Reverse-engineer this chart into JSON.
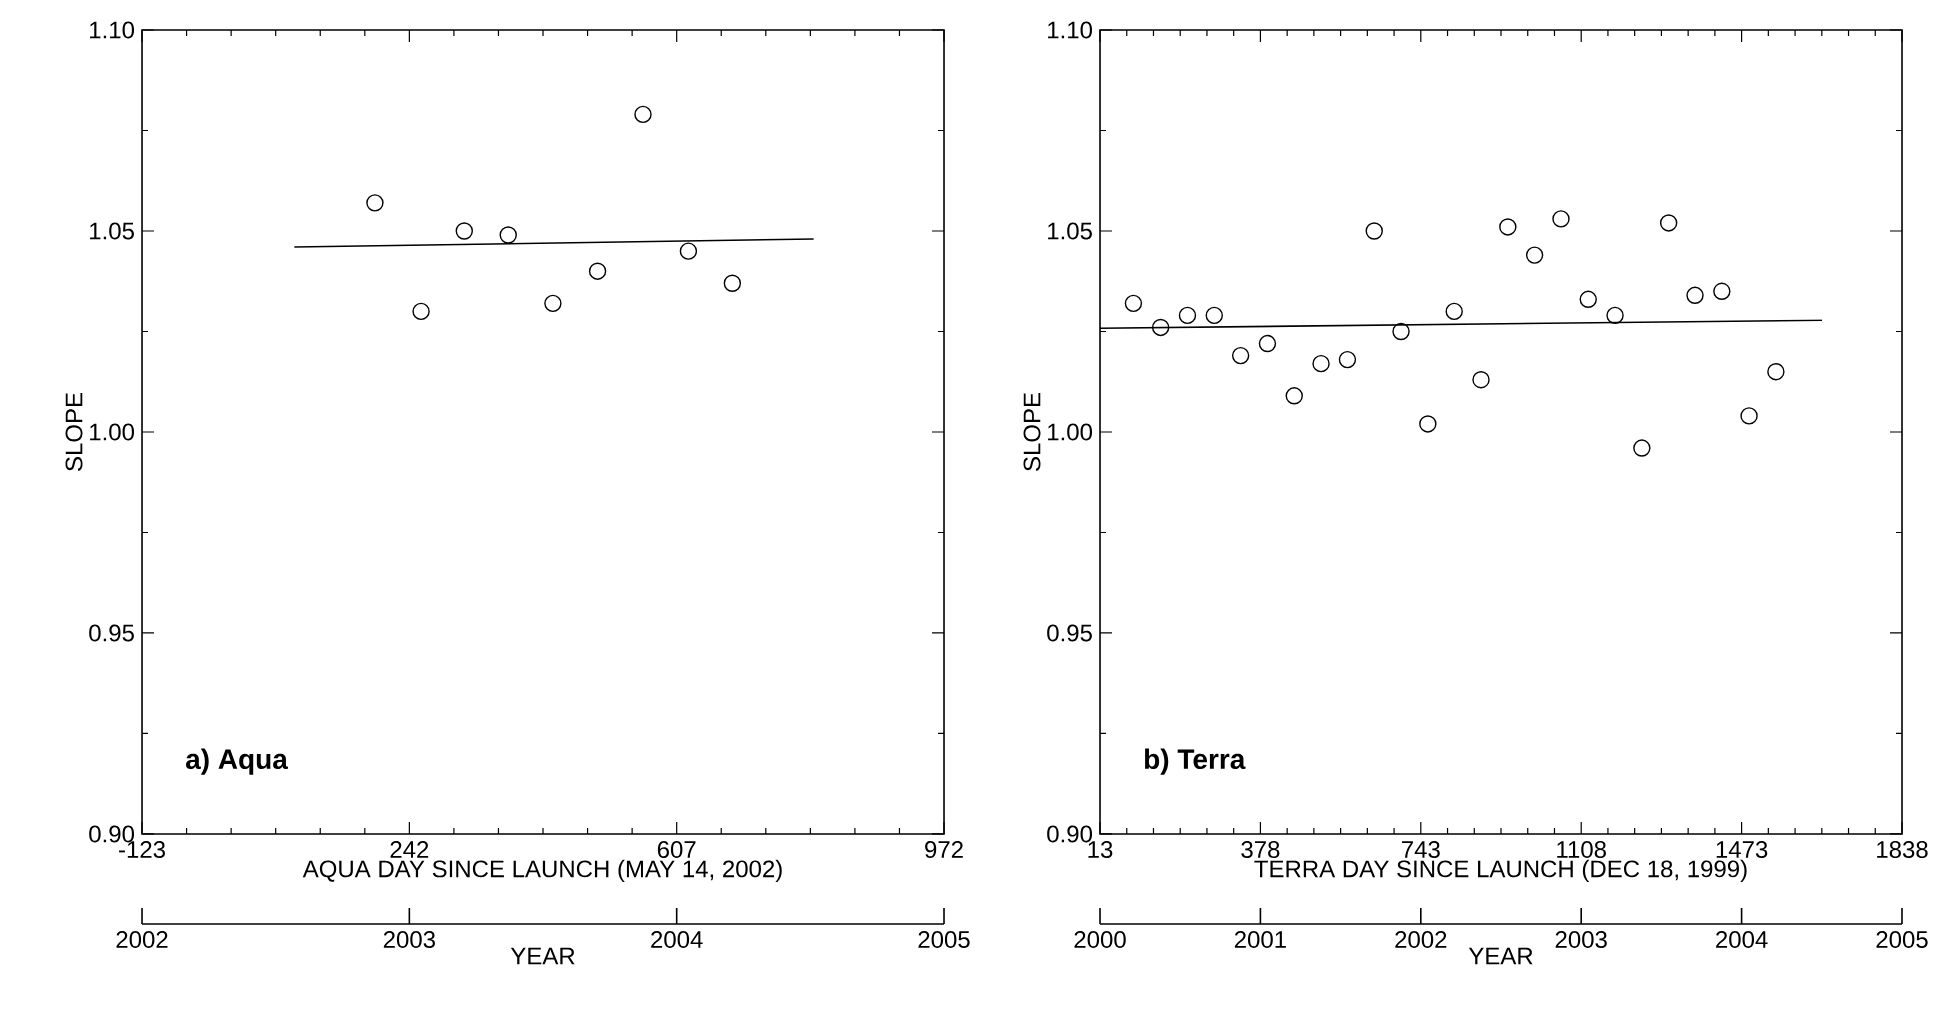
{
  "chart_data": [
    {
      "type": "scatter",
      "ylabel": "SLOPE",
      "xlabel": "AQUA DAY SINCE LAUNCH (MAY 14, 2002)",
      "x2label": "YEAR",
      "annotations": [
        "a) Aqua"
      ],
      "xlim": [
        -123,
        972
      ],
      "xticks": [
        -123,
        242,
        607,
        972
      ],
      "ylim": [
        0.9,
        1.1
      ],
      "x2lim": [
        2002,
        2005
      ],
      "x2ticks": [
        2002,
        2003,
        2004,
        2005
      ],
      "yticks": [
        {
          "value": 0.9,
          "label": "0.90"
        },
        {
          "value": 0.95,
          "label": "0.95"
        },
        {
          "value": 1.0,
          "label": "1.00"
        },
        {
          "value": 1.05,
          "label": "1.05"
        },
        {
          "value": 1.1,
          "label": "1.10"
        }
      ],
      "series": [
        {
          "marker": "circle",
          "x": [
            195,
            258,
            317,
            377,
            438,
            499,
            561,
            623,
            683
          ],
          "values": [
            1.057,
            1.03,
            1.05,
            1.049,
            1.032,
            1.04,
            1.079,
            1.045,
            1.037
          ],
          "color": "#000000"
        },
        {
          "type": "line",
          "x": [
            85,
            794
          ],
          "values": [
            1.046,
            1.048
          ],
          "color": "#000000"
        }
      ]
    },
    {
      "type": "scatter",
      "ylabel": "SLOPE",
      "xlabel": "TERRA DAY SINCE LAUNCH (DEC 18, 1999)",
      "x2label": "YEAR",
      "annotations": [
        "b) Terra"
      ],
      "xlim": [
        13,
        1838
      ],
      "xticks": [
        13,
        378,
        743,
        1108,
        1473,
        1838
      ],
      "ylim": [
        0.9,
        1.1
      ],
      "x2lim": [
        2000,
        2005
      ],
      "x2ticks": [
        2000,
        2001,
        2002,
        2003,
        2004,
        2005
      ],
      "yticks": [
        {
          "value": 0.9,
          "label": "0.90"
        },
        {
          "value": 0.95,
          "label": "0.95"
        },
        {
          "value": 1.0,
          "label": "1.00"
        },
        {
          "value": 1.05,
          "label": "1.05"
        },
        {
          "value": 1.1,
          "label": "1.10"
        }
      ],
      "series": [
        {
          "marker": "circle",
          "x": [
            89,
            151,
            212,
            273,
            333,
            394,
            455,
            516,
            576,
            637,
            698,
            759,
            819,
            880,
            941,
            1002,
            1062,
            1124,
            1185,
            1246,
            1307,
            1367,
            1428,
            1490,
            1551
          ],
          "values": [
            1.032,
            1.026,
            1.029,
            1.029,
            1.019,
            1.022,
            1.009,
            1.017,
            1.018,
            1.05,
            1.025,
            1.002,
            1.03,
            1.013,
            1.051,
            1.044,
            1.053,
            1.033,
            1.029,
            0.996,
            1.052,
            1.034,
            1.035,
            1.004,
            1.015
          ],
          "color": "#000000"
        },
        {
          "type": "line",
          "x": [
            13,
            1656
          ],
          "values": [
            1.0258,
            1.0278
          ],
          "color": "#000000"
        }
      ]
    }
  ]
}
